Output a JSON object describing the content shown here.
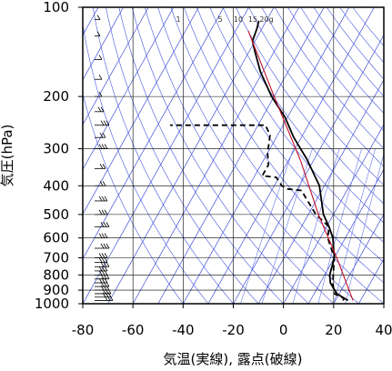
{
  "chart_data": {
    "type": "line",
    "title": "",
    "xlabel": "気温(実線), 露点(破線)",
    "ylabel": "気圧(hPa)",
    "xlim": [
      -80,
      40
    ],
    "ylim": [
      1000,
      100
    ],
    "yscale": "log",
    "x_ticks": [
      -80,
      -60,
      -40,
      -20,
      0,
      20,
      40
    ],
    "x_tick_labels": [
      "-80",
      "-60",
      "-40",
      "-20",
      "0",
      "20",
      "40"
    ],
    "y_ticks": [
      100,
      200,
      300,
      400,
      500,
      600,
      700,
      800,
      900,
      1000
    ],
    "y_tick_labels": [
      "100",
      "200",
      "300",
      "400",
      "500",
      "600",
      "700",
      "800",
      "900",
      "1000"
    ],
    "grid": true,
    "mixing_ratio_labels": [
      "1",
      "5",
      "10",
      "15",
      "20g"
    ],
    "colors": {
      "temperature": "#000000",
      "dewpoint": "#000000",
      "reference": "#c0102a",
      "isotherm": "#2233cc",
      "dry_adiabat": "#4455dd",
      "mixing_ratio": "#6677ee",
      "grid": "#000000"
    },
    "series": [
      {
        "style": "solid",
        "color": "#000000",
        "points": [
          [
            25,
            975
          ],
          [
            19,
            925
          ],
          [
            14,
            850
          ],
          [
            12,
            800
          ],
          [
            10,
            700
          ],
          [
            5,
            600
          ],
          [
            1,
            550
          ],
          [
            -4,
            500
          ],
          [
            -12,
            400
          ],
          [
            -23,
            325
          ],
          [
            -33,
            275
          ],
          [
            -41,
            235
          ],
          [
            -51,
            200
          ],
          [
            -61,
            165
          ],
          [
            -68,
            140
          ],
          [
            -71,
            130
          ],
          [
            -72,
            118
          ],
          [
            -73,
            111
          ]
        ]
      },
      {
        "style": "dashed",
        "color": "#000000",
        "points": [
          [
            23,
            975
          ],
          [
            23,
            960
          ],
          [
            18,
            925
          ],
          [
            15,
            850
          ],
          [
            10,
            700
          ],
          [
            3,
            600
          ],
          [
            1,
            550
          ],
          [
            -7,
            500
          ],
          [
            -16,
            430
          ],
          [
            -18,
            415
          ],
          [
            -24,
            410
          ],
          [
            -27,
            400
          ],
          [
            -31,
            375
          ],
          [
            -37,
            370
          ],
          [
            -37,
            340
          ],
          [
            -40,
            310
          ],
          [
            -43,
            270
          ],
          [
            -47,
            250
          ],
          [
            -85,
            250
          ]
        ]
      },
      {
        "style": "solid",
        "color": "#c0102a",
        "points": [
          [
            27,
            975
          ],
          [
            11,
            700
          ],
          [
            -6,
            500
          ],
          [
            -25,
            330
          ],
          [
            -50,
            200
          ],
          [
            -75,
            120
          ]
        ]
      }
    ],
    "wind_barbs": [
      {
        "pressure": 975,
        "u": 8
      },
      {
        "pressure": 950,
        "u": 7
      },
      {
        "pressure": 925,
        "u": 7
      },
      {
        "pressure": 900,
        "u": 6
      },
      {
        "pressure": 875,
        "u": 6
      },
      {
        "pressure": 850,
        "u": 5
      },
      {
        "pressure": 825,
        "u": 6
      },
      {
        "pressure": 800,
        "u": 5
      },
      {
        "pressure": 775,
        "u": 5
      },
      {
        "pressure": 750,
        "u": 6
      },
      {
        "pressure": 725,
        "u": 5
      },
      {
        "pressure": 700,
        "u": 5
      },
      {
        "pressure": 650,
        "u": 6
      },
      {
        "pressure": 600,
        "u": 5
      },
      {
        "pressure": 550,
        "u": 6
      },
      {
        "pressure": 500,
        "u": 5
      },
      {
        "pressure": 450,
        "u": 5
      },
      {
        "pressure": 400,
        "u": 4
      },
      {
        "pressure": 350,
        "u": 4
      },
      {
        "pressure": 300,
        "u": 5
      },
      {
        "pressure": 275,
        "u": 4
      },
      {
        "pressure": 250,
        "u": 6
      },
      {
        "pressure": 225,
        "u": 3
      },
      {
        "pressure": 200,
        "u": 2
      },
      {
        "pressure": 175,
        "u": 2
      },
      {
        "pressure": 150,
        "u": 2
      },
      {
        "pressure": 125,
        "u": 1
      },
      {
        "pressure": 110,
        "u": 1
      }
    ]
  }
}
